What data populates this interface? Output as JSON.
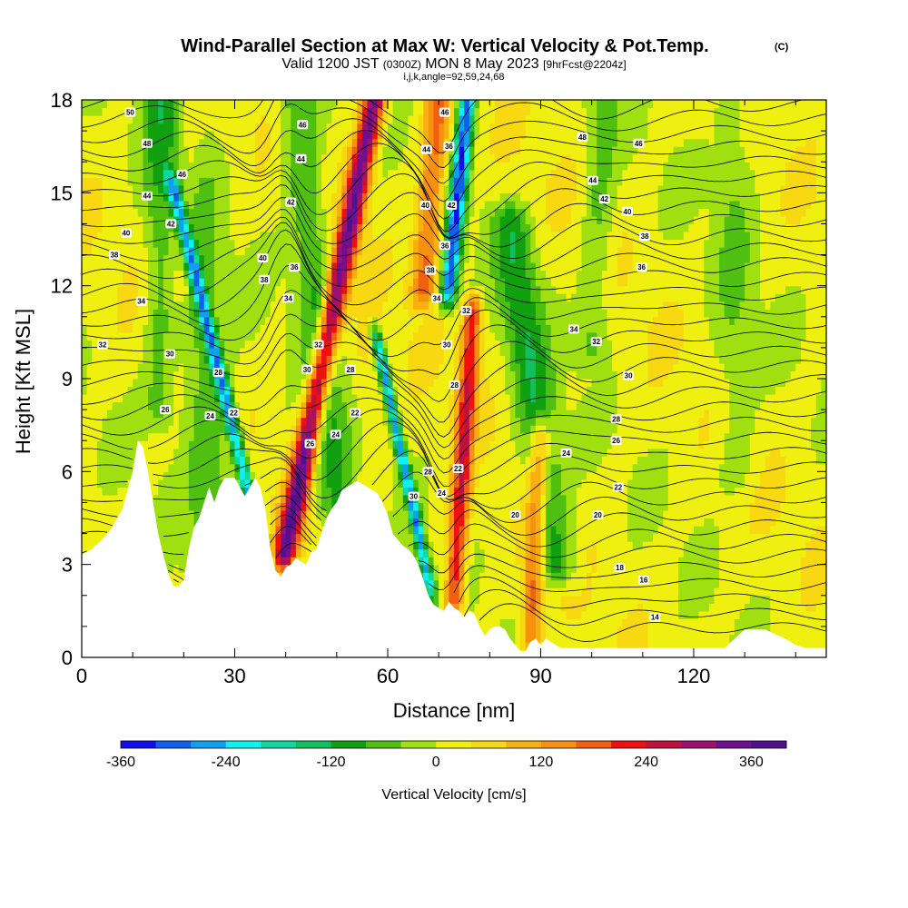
{
  "chart_data": {
    "type": "heatmap",
    "title": "Wind-Parallel Section at Max W: Vertical Velocity & Pot.Temp.",
    "copyright": "(C)",
    "valid_main": "Valid 1200 JST",
    "valid_zulu": "(0300Z)",
    "valid_date": "MON 8 May 2023",
    "forecast_info": "[9hrFcst@2204z]",
    "indices": "i,j,k,angle=92,59,24,68",
    "xlabel": "Distance [nm]",
    "ylabel": "Height [Kft MSL]",
    "xlim": [
      0,
      146
    ],
    "ylim": [
      0,
      18
    ],
    "x_ticks": [
      "0",
      "30",
      "60",
      "90",
      "120"
    ],
    "x_tick_values": [
      0,
      30,
      60,
      90,
      120
    ],
    "y_ticks": [
      "0",
      "3",
      "6",
      "9",
      "12",
      "15",
      "18"
    ],
    "y_tick_values": [
      0,
      3,
      6,
      9,
      12,
      15,
      18
    ],
    "colorbar": {
      "label": "Vertical Velocity [cm/s]",
      "levels": [
        -360,
        -320,
        -280,
        -240,
        -200,
        -160,
        -120,
        -80,
        -40,
        0,
        40,
        80,
        120,
        160,
        200,
        240,
        280,
        320,
        360,
        400
      ],
      "tick_labels": [
        "-360",
        "-240",
        "-120",
        "0",
        "120",
        "240",
        "360"
      ],
      "tick_values": [
        -360,
        -240,
        -120,
        0,
        120,
        240,
        360
      ],
      "colors": [
        "#1010ee",
        "#1060f0",
        "#10a0f0",
        "#10f0f0",
        "#10d8a0",
        "#10c060",
        "#10a010",
        "#50c010",
        "#a0e010",
        "#f0f010",
        "#f8d810",
        "#f8b010",
        "#f89010",
        "#f06010",
        "#f01010",
        "#c01040",
        "#a01070",
        "#701090",
        "#501090"
      ]
    },
    "terrain": {
      "x": [
        0,
        2,
        4,
        6,
        8,
        10,
        11,
        12,
        13,
        14,
        15,
        16,
        17,
        18,
        19,
        20,
        21,
        22,
        23,
        24,
        25,
        26,
        27,
        28,
        29,
        30,
        31,
        32,
        33,
        34,
        35,
        36,
        37,
        38,
        39,
        40,
        41,
        42,
        43,
        44,
        45,
        46,
        47,
        48,
        49,
        50,
        51,
        52,
        53,
        54,
        55,
        56,
        57,
        58,
        59,
        60,
        61,
        62,
        63,
        64,
        65,
        66,
        67,
        68,
        69,
        70,
        71,
        72,
        73,
        74,
        75,
        76,
        77,
        78,
        79,
        80,
        81,
        82,
        83,
        84,
        85,
        86,
        87,
        88,
        89,
        90,
        91,
        92,
        93,
        94,
        95,
        96,
        100,
        110,
        120,
        126,
        128,
        130,
        134,
        138,
        140,
        142,
        146
      ],
      "y": [
        3.3,
        3.5,
        3.8,
        4.2,
        4.8,
        6.0,
        7.0,
        6.8,
        6.0,
        5.0,
        4.0,
        3.3,
        2.7,
        2.3,
        2.3,
        2.5,
        3.5,
        4.2,
        4.5,
        5.0,
        5.5,
        5.0,
        5.5,
        5.8,
        5.8,
        5.8,
        5.5,
        5.2,
        5.5,
        5.8,
        5.5,
        4.8,
        3.5,
        2.8,
        2.6,
        2.9,
        3.0,
        3.2,
        3.1,
        3.0,
        3.4,
        3.5,
        4.0,
        4.5,
        4.8,
        5.0,
        5.4,
        5.5,
        5.6,
        5.7,
        5.6,
        5.5,
        5.4,
        5.3,
        5.0,
        4.6,
        4.0,
        3.8,
        3.6,
        3.5,
        3.3,
        3.0,
        2.5,
        2.0,
        1.7,
        1.6,
        1.5,
        1.8,
        1.6,
        1.5,
        1.3,
        1.5,
        1.4,
        1.0,
        0.7,
        0.9,
        1.0,
        1.0,
        0.9,
        0.6,
        0.4,
        0.2,
        0.2,
        0.5,
        0.6,
        0.4,
        0.6,
        0.5,
        0.4,
        0.3,
        0.3,
        0.3,
        0.3,
        0.3,
        0.3,
        0.3,
        0.6,
        0.9,
        0.9,
        0.6,
        0.4,
        0.3,
        0.3
      ]
    },
    "vertical_velocity_features": [
      {
        "x": 40,
        "z0": 3.5,
        "z1": 18,
        "lean": 1.2,
        "w": 2.2,
        "amp": 340
      },
      {
        "x": 37,
        "z0": 2.5,
        "z1": 15,
        "lean": -1.5,
        "w": 1.3,
        "amp": -260
      },
      {
        "x": 72,
        "z0": 12,
        "z1": 18,
        "lean": 0.6,
        "w": 1.6,
        "amp": -330
      },
      {
        "x": 68,
        "z0": 2.5,
        "z1": 10,
        "lean": -1.3,
        "w": 1.1,
        "amp": -270
      },
      {
        "x": 73,
        "z0": 2,
        "z1": 11,
        "lean": 0.4,
        "w": 1.8,
        "amp": 220
      },
      {
        "x": 88,
        "z0": 0.8,
        "z1": 7,
        "lean": 0.3,
        "w": 2.0,
        "amp": 160
      },
      {
        "x": 67,
        "z0": 12,
        "z1": 18,
        "lean": 0.5,
        "w": 2.5,
        "amp": 160
      },
      {
        "x": 27,
        "z0": 3,
        "z1": 18,
        "lean": -0.5,
        "w": 5,
        "amp": -90
      },
      {
        "x": 50,
        "z0": 5,
        "z1": 18,
        "lean": -0.6,
        "w": 4,
        "amp": -100
      },
      {
        "x": 15,
        "z0": 8,
        "z1": 18,
        "lean": 0,
        "w": 3,
        "amp": -70
      },
      {
        "x": 93,
        "z0": 3,
        "z1": 14,
        "lean": -0.8,
        "w": 4,
        "amp": -120
      },
      {
        "x": 20,
        "z0": 12,
        "z1": 18,
        "lean": 0.2,
        "w": 3,
        "amp": 80
      },
      {
        "x": 100,
        "z0": 10,
        "z1": 18,
        "lean": 0.3,
        "w": 3,
        "amp": -70
      },
      {
        "x": 128,
        "z0": 6,
        "z1": 18,
        "lean": 0,
        "w": 4,
        "amp": -50
      },
      {
        "x": 56,
        "z0": 5,
        "z1": 10,
        "lean": 0,
        "w": 3,
        "amp": 30
      }
    ],
    "potential_temperature_labels": [
      {
        "text": "50",
        "x": 9.5,
        "z": 17.6
      },
      {
        "text": "48",
        "x": 12.8,
        "z": 16.6
      },
      {
        "text": "46",
        "x": 19.7,
        "z": 15.6
      },
      {
        "text": "44",
        "x": 12.8,
        "z": 14.9
      },
      {
        "text": "42",
        "x": 17.5,
        "z": 14.0
      },
      {
        "text": "40",
        "x": 8.7,
        "z": 13.7
      },
      {
        "text": "38",
        "x": 6.4,
        "z": 13.0
      },
      {
        "text": "34",
        "x": 11.7,
        "z": 11.5
      },
      {
        "text": "32",
        "x": 4.1,
        "z": 10.1
      },
      {
        "text": "30",
        "x": 17.3,
        "z": 9.8
      },
      {
        "text": "28",
        "x": 26.8,
        "z": 9.2
      },
      {
        "text": "26",
        "x": 16.4,
        "z": 8.0
      },
      {
        "text": "24",
        "x": 25.2,
        "z": 7.8
      },
      {
        "text": "22",
        "x": 29.8,
        "z": 7.9
      },
      {
        "text": "46",
        "x": 43.3,
        "z": 17.2
      },
      {
        "text": "44",
        "x": 43.0,
        "z": 16.1
      },
      {
        "text": "42",
        "x": 41.0,
        "z": 14.7
      },
      {
        "text": "40",
        "x": 35.5,
        "z": 12.9
      },
      {
        "text": "38",
        "x": 35.8,
        "z": 12.2
      },
      {
        "text": "36",
        "x": 41.7,
        "z": 12.6
      },
      {
        "text": "34",
        "x": 40.5,
        "z": 11.6
      },
      {
        "text": "32",
        "x": 46.4,
        "z": 10.1
      },
      {
        "text": "30",
        "x": 44.2,
        "z": 9.3
      },
      {
        "text": "28",
        "x": 52.7,
        "z": 9.3
      },
      {
        "text": "24",
        "x": 49.8,
        "z": 7.2
      },
      {
        "text": "22",
        "x": 53.6,
        "z": 7.9
      },
      {
        "text": "26",
        "x": 44.8,
        "z": 6.9
      },
      {
        "text": "46",
        "x": 71.2,
        "z": 17.6
      },
      {
        "text": "44",
        "x": 67.6,
        "z": 16.4
      },
      {
        "text": "36",
        "x": 72.0,
        "z": 16.5
      },
      {
        "text": "42",
        "x": 72.5,
        "z": 14.6
      },
      {
        "text": "40",
        "x": 67.4,
        "z": 14.6
      },
      {
        "text": "36",
        "x": 71.2,
        "z": 13.3
      },
      {
        "text": "38",
        "x": 68.4,
        "z": 12.5
      },
      {
        "text": "34",
        "x": 69.6,
        "z": 11.6
      },
      {
        "text": "32",
        "x": 75.4,
        "z": 11.2
      },
      {
        "text": "30",
        "x": 71.6,
        "z": 10.1
      },
      {
        "text": "28",
        "x": 73.1,
        "z": 8.8
      },
      {
        "text": "28",
        "x": 67.9,
        "z": 6.0
      },
      {
        "text": "30",
        "x": 65.1,
        "z": 5.2
      },
      {
        "text": "24",
        "x": 70.6,
        "z": 5.3
      },
      {
        "text": "22",
        "x": 73.8,
        "z": 6.1
      },
      {
        "text": "48",
        "x": 98.2,
        "z": 16.8
      },
      {
        "text": "46",
        "x": 109.2,
        "z": 16.6
      },
      {
        "text": "44",
        "x": 100.2,
        "z": 15.4
      },
      {
        "text": "42",
        "x": 102.5,
        "z": 14.8
      },
      {
        "text": "40",
        "x": 107.0,
        "z": 14.4
      },
      {
        "text": "38",
        "x": 110.4,
        "z": 13.6
      },
      {
        "text": "36",
        "x": 109.8,
        "z": 12.6
      },
      {
        "text": "34",
        "x": 96.5,
        "z": 10.6
      },
      {
        "text": "32",
        "x": 100.9,
        "z": 10.2
      },
      {
        "text": "30",
        "x": 107.2,
        "z": 9.1
      },
      {
        "text": "28",
        "x": 104.8,
        "z": 7.7
      },
      {
        "text": "26",
        "x": 104.8,
        "z": 7.0
      },
      {
        "text": "24",
        "x": 95.0,
        "z": 6.6
      },
      {
        "text": "22",
        "x": 105.2,
        "z": 5.5
      },
      {
        "text": "20",
        "x": 85.0,
        "z": 4.6
      },
      {
        "text": "20",
        "x": 101.2,
        "z": 4.6
      },
      {
        "text": "18",
        "x": 105.5,
        "z": 2.9
      },
      {
        "text": "16",
        "x": 110.2,
        "z": 2.5
      },
      {
        "text": "14",
        "x": 112.4,
        "z": 1.3
      }
    ]
  }
}
